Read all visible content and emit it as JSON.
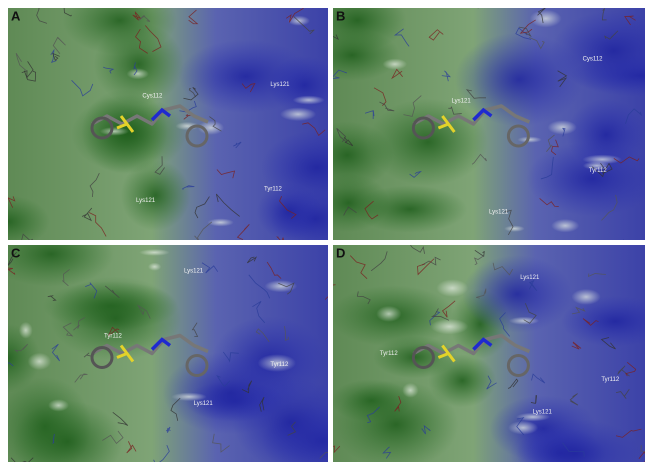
{
  "figure": {
    "panels": [
      {
        "label": "A",
        "residues": [
          "Cys112",
          "Lys121",
          "Lys121",
          "Tyr112"
        ]
      },
      {
        "label": "B",
        "residues": [
          "Lys121",
          "Cys112",
          "Lys121",
          "Tyr112"
        ]
      },
      {
        "label": "C",
        "residues": [
          "Lys121",
          "Tyr112",
          "Tyr112",
          "Lys121"
        ]
      },
      {
        "label": "D",
        "residues": [
          "Lys121",
          "Tyr112",
          "Tyr112",
          "Lys121"
        ]
      }
    ]
  }
}
